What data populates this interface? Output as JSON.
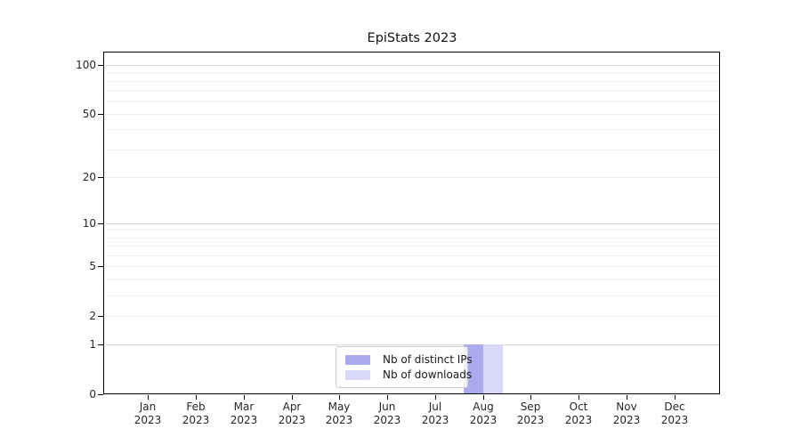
{
  "chart_data": {
    "type": "bar",
    "title": "EpiStats 2023",
    "months": [
      "Jan",
      "Feb",
      "Mar",
      "Apr",
      "May",
      "Jun",
      "Jul",
      "Aug",
      "Sep",
      "Oct",
      "Nov",
      "Dec"
    ],
    "year": "2023",
    "series": [
      {
        "name": "Nb of distinct IPs",
        "color": "#aaaaee",
        "values": [
          0,
          0,
          0,
          0,
          0,
          0,
          0,
          1,
          0,
          0,
          0,
          0
        ]
      },
      {
        "name": "Nb of downloads",
        "color": "#d8d9fa",
        "values": [
          0,
          0,
          0,
          0,
          0,
          0,
          0,
          1,
          0,
          0,
          0,
          0
        ]
      }
    ],
    "yscale": "log1p",
    "yticks": [
      0,
      1,
      2,
      5,
      10,
      20,
      50,
      100
    ],
    "major_yticks": [
      1,
      10,
      100
    ],
    "minor_gridlines": [
      3,
      4,
      6,
      7,
      8,
      9,
      30,
      40,
      60,
      70,
      80,
      90
    ],
    "ylim": [
      0,
      116
    ],
    "grid": true,
    "legend": {
      "position": "lower center"
    }
  }
}
